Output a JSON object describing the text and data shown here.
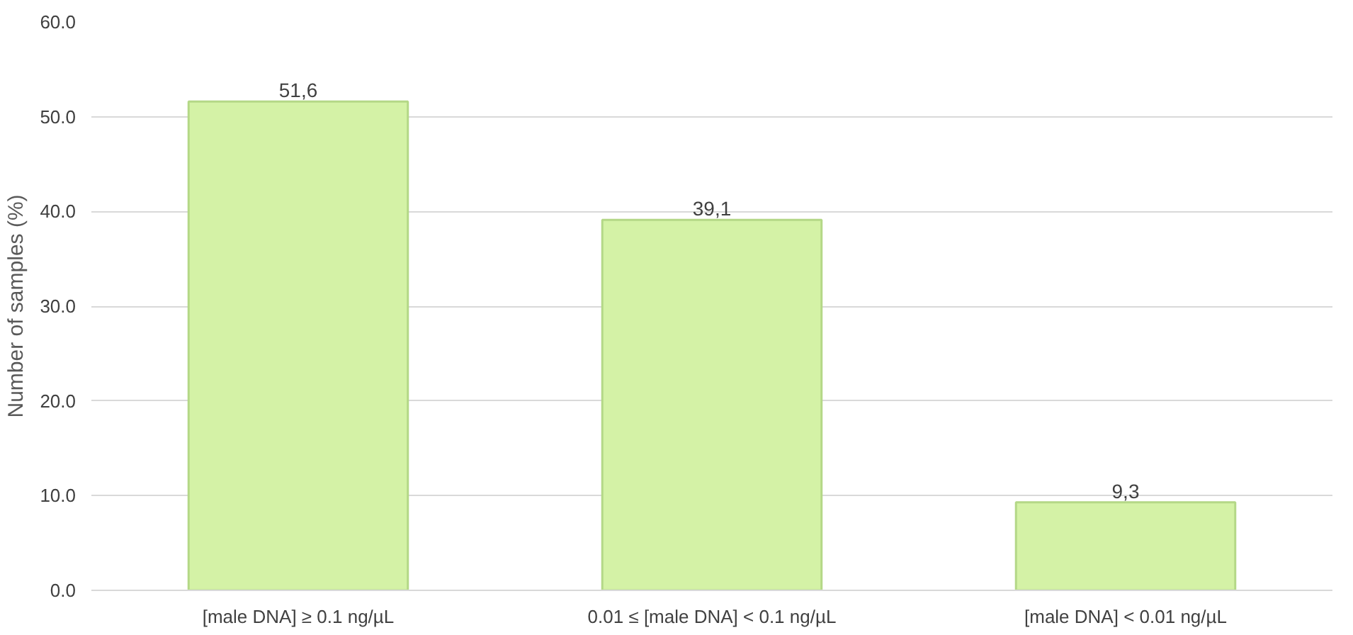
{
  "chart_data": {
    "type": "bar",
    "ylabel": "Number of samples (%)",
    "categories": [
      "[male DNA] ≥ 0.1 ng/µL",
      "0.01 ≤ [male DNA] < 0.1 ng/µL",
      "[male DNA] < 0.01 ng/µL"
    ],
    "values": [
      51.6,
      39.1,
      9.3
    ],
    "value_labels": [
      "51,6",
      "39,1",
      "9,3"
    ],
    "color": "#d4f2a6",
    "ylim": [
      0,
      60
    ],
    "yticks": [
      {
        "value": 0,
        "label": "0.0"
      },
      {
        "value": 10,
        "label": "10.0"
      },
      {
        "value": 20,
        "label": "20.0"
      },
      {
        "value": 30,
        "label": "30.0"
      },
      {
        "value": 40,
        "label": "40.0"
      },
      {
        "value": 50,
        "label": "50.0"
      },
      {
        "value": 60,
        "label": "60.0"
      }
    ],
    "grid": "y"
  }
}
